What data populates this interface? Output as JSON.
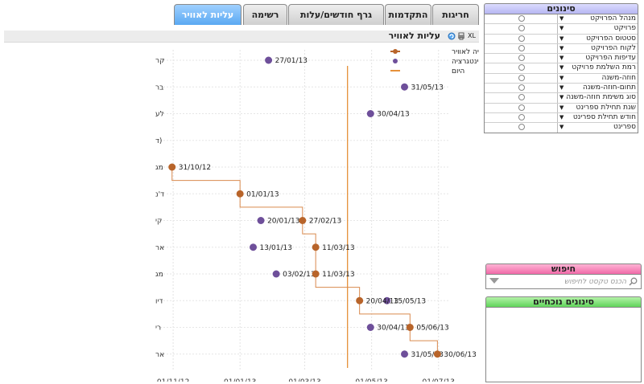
{
  "tabs": [
    {
      "label": "חריגות",
      "active": false
    },
    {
      "label": "התקדמות",
      "active": false
    },
    {
      "label": "גרף חודשים/עלות",
      "active": false
    },
    {
      "label": "רשימה",
      "active": false
    },
    {
      "label": "עליות לאוויר",
      "active": true
    }
  ],
  "chart_panel": {
    "title": "עליות לאוויר",
    "icons": [
      "xl-export-icon",
      "print-icon",
      "refresh-icon"
    ]
  },
  "filters": {
    "title": "סינונים",
    "items": [
      "מנהל הפרויקט",
      "פרויקט",
      "סטטוס הפרויקט",
      "לקוח הפרויקט",
      "עדיפות הפרויקט",
      "רמת השלמת פרויקט",
      "חוזה-משנה",
      "תחום-חוזה-משנה",
      "סוג משימת חוזה-משנה",
      "שנת תחילת ספרינט",
      "חודש תחילת ספרינט",
      "ספרינט"
    ]
  },
  "search": {
    "title": "חיפוש",
    "placeholder": "הכנס טקסט לחיפוש"
  },
  "current_filters": {
    "title": "סינונים נוכחיים"
  },
  "chart_data": {
    "type": "scatter",
    "title": "עליות לאוויר",
    "x_axis": {
      "type": "date",
      "ticks": [
        "01/11/12",
        "01/01/13",
        "01/03/13",
        "01/05/13",
        "01/07/13"
      ],
      "range": [
        "2012-10-29",
        "2013-07-10"
      ]
    },
    "y_categories": [
      "קר",
      "בר",
      "לע",
      "(ד",
      "מג",
      "ד'נ",
      "קי",
      "אר",
      "מג",
      "דיו",
      "רי",
      "אר"
    ],
    "today": "2013-04-09",
    "legend": [
      {
        "name": "יעד עלייה לאוויר",
        "color": "#b8642a"
      },
      {
        "name": "יעד עלייה לאינטגרציה",
        "color": "#6e4f9a"
      },
      {
        "name": "היום",
        "color": "#e6913a"
      }
    ],
    "colors": {
      "airborne": "#b8642a",
      "integration": "#6e4f9a",
      "today": "#e6913a",
      "step_line": "#d98a4e"
    },
    "integration_points": [
      {
        "row": 0,
        "date": "27/01/13"
      },
      {
        "row": 1,
        "date": "31/05/13"
      },
      {
        "row": 2,
        "date": "30/04/13"
      },
      {
        "row": 6,
        "date": "20/01/13"
      },
      {
        "row": 7,
        "date": "13/01/13"
      },
      {
        "row": 8,
        "date": "03/02/13"
      },
      {
        "row": 9,
        "date": "15/05/13"
      },
      {
        "row": 10,
        "date": "30/04/13"
      },
      {
        "row": 11,
        "date": "31/05/13"
      }
    ],
    "airborne_points": [
      {
        "row": 4,
        "date": "31/10/12"
      },
      {
        "row": 5,
        "date": "01/01/13"
      },
      {
        "row": 6,
        "date": "27/02/13"
      },
      {
        "row": 7,
        "date": "11/03/13"
      },
      {
        "row": 8,
        "date": "11/03/13"
      },
      {
        "row": 9,
        "date": "20/04/13"
      },
      {
        "row": 10,
        "date": "05/06/13"
      },
      {
        "row": 11,
        "date": "30/06/13"
      }
    ]
  }
}
